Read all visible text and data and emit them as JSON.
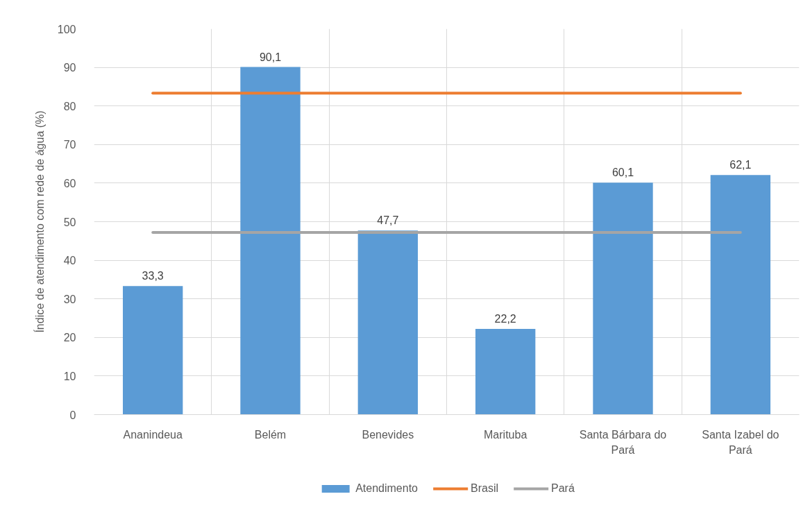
{
  "chart_data": {
    "type": "bar",
    "ylabel": "Índice de atendimento com rede de água (%)",
    "categories": [
      "Ananindeua",
      "Belém",
      "Benevides",
      "Marituba",
      "Santa Bárbara do Pará",
      "Santa Izabel do Pará"
    ],
    "series": [
      {
        "name": "Atendimento",
        "color": "#5b9bd5",
        "values": [
          33.3,
          90.1,
          47.7,
          22.2,
          60.1,
          62.1
        ],
        "value_labels": [
          "33,3",
          "90,1",
          "47,7",
          "22,2",
          "60,1",
          "62,1"
        ]
      },
      {
        "name": "Brasil",
        "type": "line",
        "color": "#ed7d31",
        "values": [
          83.3,
          83.3,
          83.3,
          83.3,
          83.3,
          83.3
        ]
      },
      {
        "name": "Pará",
        "type": "line",
        "color": "#a5a5a5",
        "values": [
          47.2,
          47.2,
          47.2,
          47.2,
          47.2,
          47.2
        ]
      }
    ],
    "ylim": [
      0,
      100
    ],
    "yticks": [
      0,
      10,
      20,
      30,
      40,
      50,
      60,
      70,
      80,
      90,
      100
    ],
    "grid": true,
    "legend": "bottom"
  }
}
